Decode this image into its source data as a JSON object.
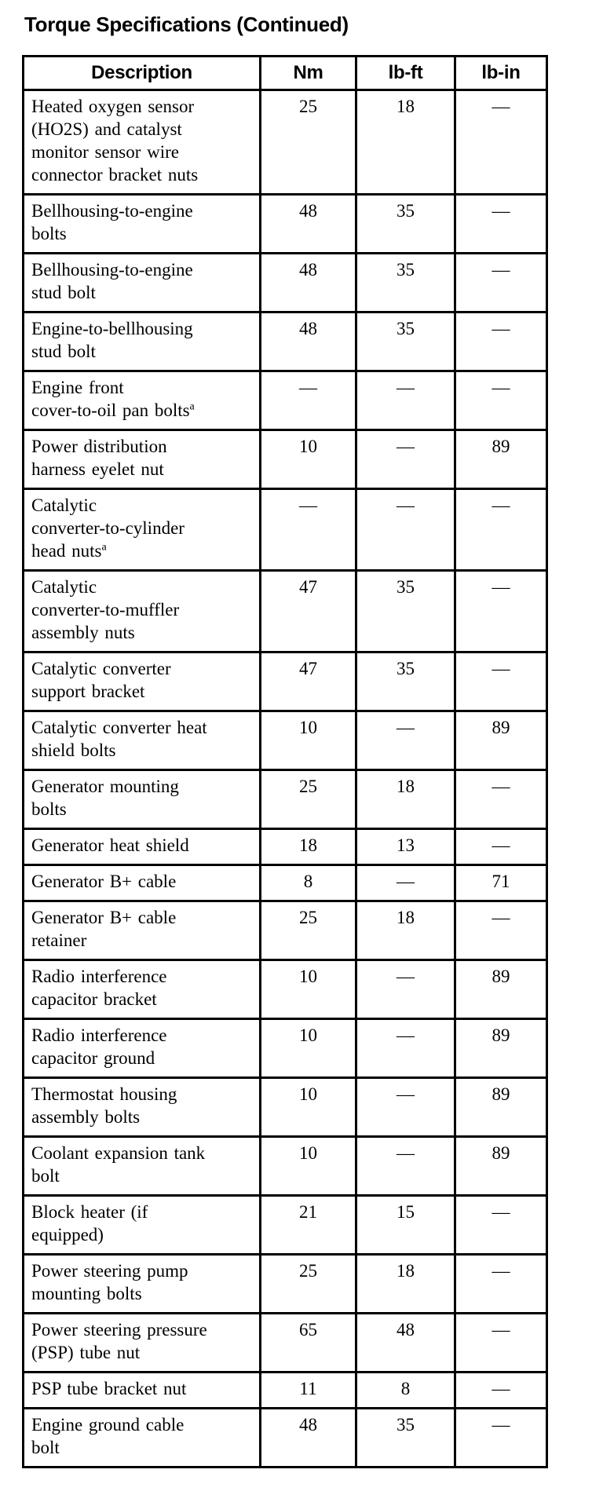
{
  "page": {
    "title": "Torque Specifications (Continued)"
  },
  "table": {
    "columns": [
      "Description",
      "Nm",
      "lb-ft",
      "lb-in"
    ],
    "dash": "—",
    "rows": [
      {
        "description": "Heated oxygen sensor\n(HO2S) and catalyst\nmonitor sensor wire\nconnector bracket nuts",
        "nm": "25",
        "lb_ft": "18",
        "lb_in": "—"
      },
      {
        "description": "Bellhousing-to-engine\nbolts",
        "nm": "48",
        "lb_ft": "35",
        "lb_in": "—"
      },
      {
        "description": "Bellhousing-to-engine\nstud bolt",
        "nm": "48",
        "lb_ft": "35",
        "lb_in": "—"
      },
      {
        "description": "Engine-to-bellhousing\nstud bolt",
        "nm": "48",
        "lb_ft": "35",
        "lb_in": "—"
      },
      {
        "description": "Engine front\ncover-to-oil pan bolts",
        "footnote": "a",
        "nm": "—",
        "lb_ft": "—",
        "lb_in": "—"
      },
      {
        "description": "Power distribution\nharness eyelet nut",
        "nm": "10",
        "lb_ft": "—",
        "lb_in": "89"
      },
      {
        "description": "Catalytic\nconverter-to-cylinder\nhead nuts",
        "footnote": "a",
        "nm": "—",
        "lb_ft": "—",
        "lb_in": "—"
      },
      {
        "description": "Catalytic\nconverter-to-muffler\nassembly nuts",
        "nm": "47",
        "lb_ft": "35",
        "lb_in": "—"
      },
      {
        "description": "Catalytic converter\nsupport bracket",
        "nm": "47",
        "lb_ft": "35",
        "lb_in": "—"
      },
      {
        "description": "Catalytic converter heat\nshield bolts",
        "nm": "10",
        "lb_ft": "—",
        "lb_in": "89"
      },
      {
        "description": "Generator mounting\nbolts",
        "nm": "25",
        "lb_ft": "18",
        "lb_in": "—"
      },
      {
        "description": "Generator heat shield",
        "nm": "18",
        "lb_ft": "13",
        "lb_in": "—"
      },
      {
        "description": "Generator B+ cable",
        "nm": "8",
        "lb_ft": "—",
        "lb_in": "71"
      },
      {
        "description": "Generator B+ cable\nretainer",
        "nm": "25",
        "lb_ft": "18",
        "lb_in": "—"
      },
      {
        "description": "Radio interference\ncapacitor bracket",
        "nm": "10",
        "lb_ft": "—",
        "lb_in": "89"
      },
      {
        "description": "Radio interference\ncapacitor ground",
        "nm": "10",
        "lb_ft": "—",
        "lb_in": "89"
      },
      {
        "description": "Thermostat housing\nassembly bolts",
        "nm": "10",
        "lb_ft": "—",
        "lb_in": "89"
      },
      {
        "description": "Coolant expansion tank\nbolt",
        "nm": "10",
        "lb_ft": "—",
        "lb_in": "89"
      },
      {
        "description": "Block heater (if\nequipped)",
        "nm": "21",
        "lb_ft": "15",
        "lb_in": "—"
      },
      {
        "description": "Power steering pump\nmounting bolts",
        "nm": "25",
        "lb_ft": "18",
        "lb_in": "—"
      },
      {
        "description": "Power steering pressure\n(PSP) tube nut",
        "nm": "65",
        "lb_ft": "48",
        "lb_in": "—"
      },
      {
        "description": "PSP tube bracket nut",
        "nm": "11",
        "lb_ft": "8",
        "lb_in": "—"
      },
      {
        "description": "Engine ground cable\nbolt",
        "nm": "48",
        "lb_ft": "35",
        "lb_in": "—"
      }
    ]
  }
}
